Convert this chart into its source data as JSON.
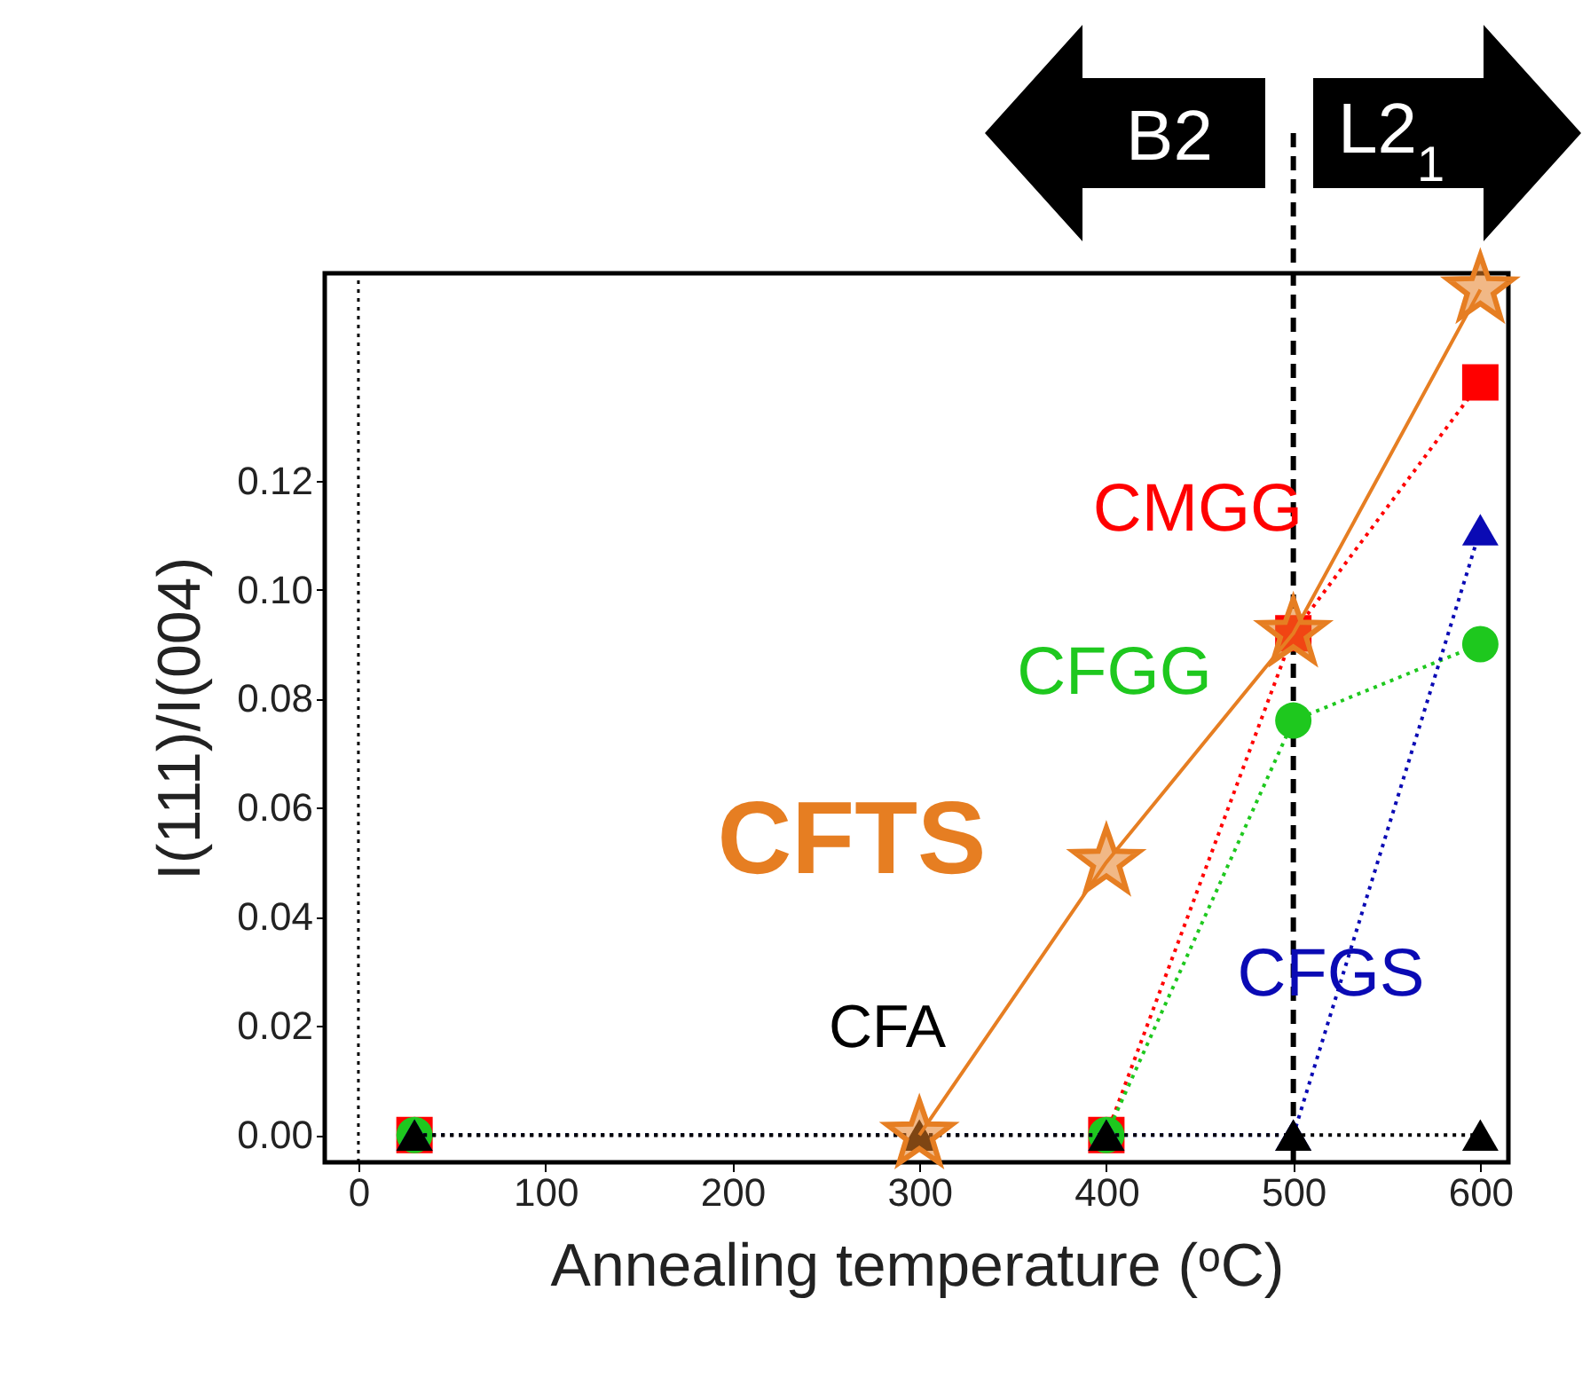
{
  "chart_data": {
    "type": "line",
    "xlabel": "Annealing temperature (ᵒC)",
    "ylabel": "I(111)/I(004)",
    "xlim": [
      -18,
      615
    ],
    "ylim": [
      -0.005,
      0.158
    ],
    "xticks": [
      0,
      100,
      200,
      300,
      400,
      500,
      600
    ],
    "yticks": [
      {
        "value": 0,
        "label": "0.00"
      },
      {
        "value": 0.02,
        "label": "0.02"
      },
      {
        "value": 0.04,
        "label": "0.04"
      },
      {
        "value": 0.06,
        "label": "0.06"
      },
      {
        "value": 0.08,
        "label": "0.08"
      },
      {
        "value": 0.1,
        "label": "0.10"
      },
      {
        "value": 0.12,
        "label": "0.12"
      }
    ],
    "grid": false,
    "legend": false,
    "series": [
      {
        "name": "CMGG",
        "color": "#ff0000",
        "x": [
          30,
          400,
          500,
          600
        ],
        "values": [
          0,
          0,
          0.092,
          0.138
        ],
        "marker": "square",
        "line_style": "dotted"
      },
      {
        "name": "CFGG",
        "color": "#1ec81e",
        "x": [
          30,
          400,
          500,
          600
        ],
        "values": [
          0,
          0,
          0.076,
          0.09
        ],
        "marker": "circle",
        "line_style": "dotted"
      },
      {
        "name": "CFGS",
        "color": "#0a0ab4",
        "x": [
          30,
          400,
          500,
          600
        ],
        "values": [
          0,
          0,
          0,
          0.111
        ],
        "marker": "triangle",
        "line_style": "dotted"
      },
      {
        "name": "CFA",
        "color": "#000000",
        "x": [
          30,
          300,
          400,
          500,
          600
        ],
        "values": [
          0,
          0,
          0,
          0,
          0
        ],
        "marker": "triangle",
        "line_style": "dotted"
      },
      {
        "name": "CFTS",
        "color": "#e67e22",
        "x": [
          300,
          400,
          500,
          600
        ],
        "values": [
          0,
          0.05,
          0.092,
          0.155
        ],
        "marker": "star",
        "line_style": "solid"
      }
    ],
    "ref_lines": [
      {
        "axis": "x",
        "value": 500,
        "color": "#000000",
        "line_style": "dashed"
      },
      {
        "axis": "x",
        "value": 0,
        "color": "#000000",
        "line_style": "dotted"
      }
    ],
    "annotations": [
      "B2",
      "L2$_{1}$"
    ]
  }
}
